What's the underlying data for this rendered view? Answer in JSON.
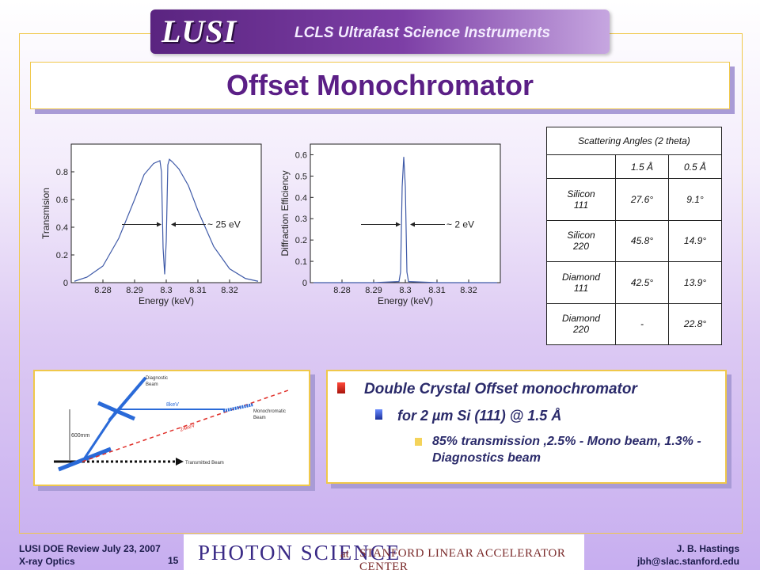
{
  "header": {
    "logo": "LUSI",
    "subtitle": "LCLS Ultrafast Science Instruments"
  },
  "title": "Offset Monochromator",
  "chart_data": [
    {
      "type": "line",
      "xlabel": "Energy (keV)",
      "ylabel": "Transmision",
      "xlim": [
        8.27,
        8.33
      ],
      "ylim": [
        0,
        1.0
      ],
      "x_ticks": [
        "8.28",
        "8.29",
        "8.3",
        "8.31",
        "8.32"
      ],
      "y_ticks": [
        "0",
        "0.2",
        "0.4",
        "0.6",
        "0.8"
      ],
      "annotation": "~ 25 eV",
      "series": [
        {
          "x": [
            8.271,
            8.275,
            8.28,
            8.285,
            8.29,
            8.293,
            8.296,
            8.298,
            8.2985,
            8.299,
            8.2995,
            8.3,
            8.3005,
            8.301,
            8.3015,
            8.302,
            8.304,
            8.307,
            8.31,
            8.315,
            8.32,
            8.325,
            8.329
          ],
          "y": [
            0.01,
            0.04,
            0.12,
            0.32,
            0.6,
            0.78,
            0.86,
            0.88,
            0.8,
            0.25,
            0.06,
            0.3,
            0.85,
            0.89,
            0.88,
            0.87,
            0.82,
            0.7,
            0.52,
            0.26,
            0.1,
            0.03,
            0.01
          ]
        }
      ]
    },
    {
      "type": "line",
      "xlabel": "Energy (keV)",
      "ylabel": "Diffraction Efficiency",
      "xlim": [
        8.27,
        8.33
      ],
      "ylim": [
        0,
        0.65
      ],
      "x_ticks": [
        "8.28",
        "8.29",
        "8.3",
        "8.31",
        "8.32"
      ],
      "y_ticks": [
        "0",
        "0.1",
        "0.2",
        "0.3",
        "0.4",
        "0.5",
        "0.6"
      ],
      "annotation": "~ 2 eV",
      "series": [
        {
          "x": [
            8.271,
            8.29,
            8.298,
            8.2985,
            8.299,
            8.2995,
            8.3,
            8.3005,
            8.301,
            8.31,
            8.329
          ],
          "y": [
            0,
            0,
            0.005,
            0.05,
            0.45,
            0.59,
            0.45,
            0.05,
            0.005,
            0,
            0
          ]
        }
      ]
    }
  ],
  "table": {
    "caption": "Scattering Angles (2 theta)",
    "columns": [
      "",
      "1.5 Å",
      "0.5 Å"
    ],
    "rows": [
      {
        "material": "Silicon\n111",
        "a": "27.6°",
        "b": "9.1°"
      },
      {
        "material": "Silicon\n220",
        "a": "45.8°",
        "b": "14.9°"
      },
      {
        "material": "Diamond\n111",
        "a": "42.5°",
        "b": "13.9°"
      },
      {
        "material": "Diamond\n220",
        "a": "-",
        "b": "22.8°"
      }
    ]
  },
  "diagram": {
    "labels": {
      "diagnostic": "Diagnostic\nBeam",
      "kev_blue": "8keV",
      "kev_red": "24keV",
      "height": "600mm",
      "mono": "Monochromatic\nBeam",
      "transmitted": "Transmitted Beam"
    }
  },
  "bullets": {
    "b1": "Double Crystal Offset monochromator",
    "b2": "for 2 µm Si (111) @ 1.5 Å",
    "b3": "85% transmission ,2.5% - Mono beam, 1.3% - Diagnostics beam"
  },
  "footer": {
    "left1": "LUSI DOE Review July 23, 2007",
    "left2": "X-ray Optics",
    "page": "15",
    "right1": "J. B. Hastings",
    "right2": "jbh@slac.stanford.edu",
    "banner_main": "PHOTON SCIENCE",
    "banner_at": "at",
    "banner_org": "STANFORD LINEAR ACCELERATOR CENTER"
  },
  "colors": {
    "title": "#5b1f86",
    "accent_border": "#f0c84a",
    "banner": "#5a2480"
  }
}
